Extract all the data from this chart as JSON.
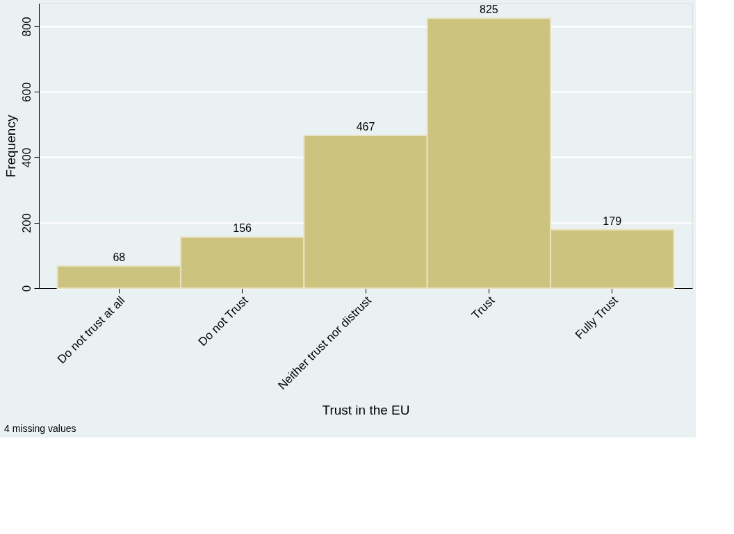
{
  "chart_data": {
    "type": "bar",
    "xlabel": "Trust in the EU",
    "ylabel": "Frequency",
    "categories": [
      "Do not trust at all",
      "Do not Trust",
      "Neither trust nor distrust",
      "Trust",
      "Fully Trust"
    ],
    "values": [
      68,
      156,
      467,
      825,
      179
    ],
    "color": "#ccc47e",
    "data_labels": true,
    "ylim": [
      0,
      870
    ],
    "yticks": [
      0,
      200,
      400,
      600,
      800
    ],
    "grid": "y",
    "annotations": [
      "4 missing values"
    ]
  }
}
